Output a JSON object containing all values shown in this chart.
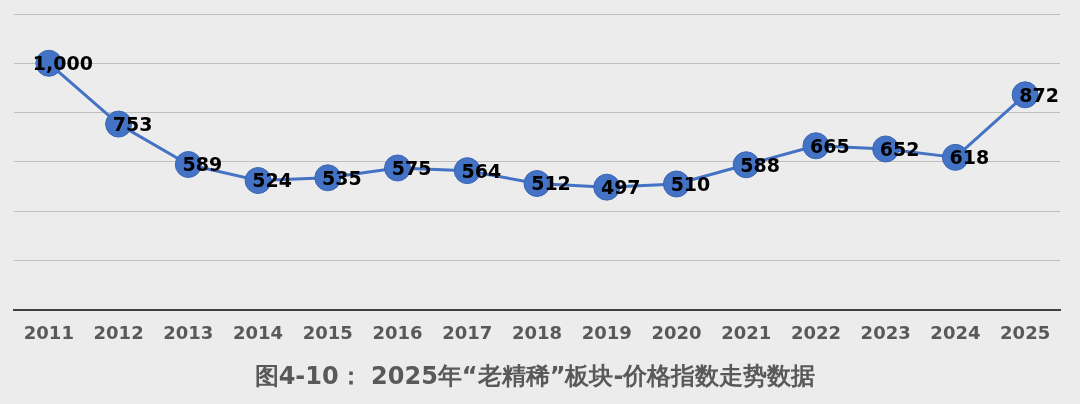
{
  "chart_data": {
    "type": "line",
    "title": "图4-10： 2025年“老精稀”板块-价格指数走势数据",
    "categories": [
      "2011",
      "2012",
      "2013",
      "2014",
      "2015",
      "2016",
      "2017",
      "2018",
      "2019",
      "2020",
      "2021",
      "2022",
      "2023",
      "2024",
      "2025"
    ],
    "series": [
      {
        "color": "#4472c4",
        "values": [
          1000,
          753,
          589,
          524,
          535,
          575,
          564,
          512,
          497,
          510,
          588,
          665,
          652,
          618,
          872
        ],
        "value_labels": [
          "1,000",
          "753",
          "589",
          "524",
          "535",
          "575",
          "564",
          "512",
          "497",
          "510",
          "588",
          "665",
          "652",
          "618",
          "872"
        ]
      }
    ],
    "ylim": [
      0,
      1200
    ],
    "yticks": [
      {
        "value": 0,
        "label": null
      },
      {
        "value": 200,
        "label": null
      },
      {
        "value": 400,
        "label": null
      },
      {
        "value": 600,
        "label": null
      },
      {
        "value": 800,
        "label": null
      },
      {
        "value": 1000,
        "label": null
      },
      {
        "value": 1200,
        "label": null
      }
    ],
    "grid": "y",
    "tick_labels": "x",
    "marker": "circle",
    "line_style": "solid"
  }
}
